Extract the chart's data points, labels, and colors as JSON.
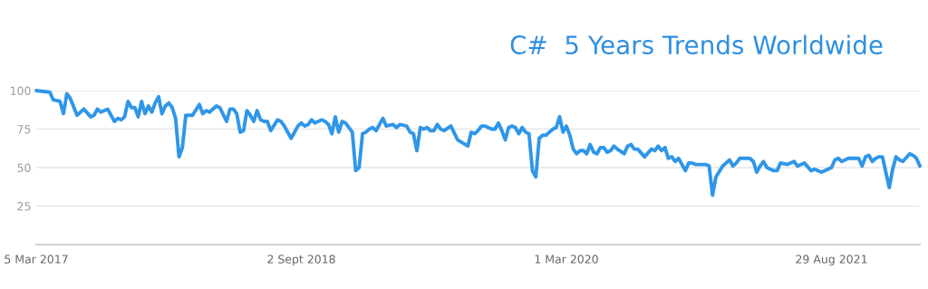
{
  "chart_data": {
    "type": "line",
    "title": "C#  5 Years Trends Worldwide",
    "x": [
      "2017-03-05",
      "2017-04-02",
      "2017-04-09",
      "2017-04-23",
      "2017-04-30",
      "2017-05-07",
      "2017-05-14",
      "2017-05-28",
      "2017-06-11",
      "2017-06-25",
      "2017-07-02",
      "2017-07-09",
      "2017-07-16",
      "2017-07-30",
      "2017-08-13",
      "2017-08-20",
      "2017-08-27",
      "2017-09-03",
      "2017-09-10",
      "2017-09-17",
      "2017-09-24",
      "2017-10-01",
      "2017-10-08",
      "2017-10-15",
      "2017-10-22",
      "2017-10-29",
      "2017-11-05",
      "2017-11-12",
      "2017-11-19",
      "2017-11-26",
      "2017-12-03",
      "2017-12-10",
      "2017-12-17",
      "2017-12-24",
      "2017-12-31",
      "2018-01-07",
      "2018-01-21",
      "2018-02-04",
      "2018-02-11",
      "2018-02-18",
      "2018-02-25",
      "2018-03-11",
      "2018-03-18",
      "2018-04-01",
      "2018-04-08",
      "2018-04-15",
      "2018-04-22",
      "2018-04-29",
      "2018-05-06",
      "2018-05-13",
      "2018-05-20",
      "2018-05-27",
      "2018-06-03",
      "2018-06-10",
      "2018-06-17",
      "2018-06-24",
      "2018-07-01",
      "2018-07-15",
      "2018-07-22",
      "2018-07-29",
      "2018-08-12",
      "2018-08-26",
      "2018-09-02",
      "2018-09-09",
      "2018-09-16",
      "2018-09-23",
      "2018-09-30",
      "2018-10-14",
      "2018-10-21",
      "2018-10-28",
      "2018-11-04",
      "2018-11-11",
      "2018-11-18",
      "2018-11-25",
      "2018-12-02",
      "2018-12-16",
      "2018-12-23",
      "2018-12-30",
      "2019-01-06",
      "2019-01-13",
      "2019-01-20",
      "2019-01-27",
      "2019-02-03",
      "2019-02-10",
      "2019-02-17",
      "2019-02-24",
      "2019-03-10",
      "2019-03-17",
      "2019-03-24",
      "2019-04-07",
      "2019-04-14",
      "2019-04-21",
      "2019-04-28",
      "2019-05-05",
      "2019-05-12",
      "2019-05-19",
      "2019-05-26",
      "2019-06-02",
      "2019-06-09",
      "2019-06-16",
      "2019-06-23",
      "2019-07-07",
      "2019-07-21",
      "2019-08-11",
      "2019-08-18",
      "2019-08-25",
      "2019-09-01",
      "2019-09-08",
      "2019-09-15",
      "2019-09-29",
      "2019-10-06",
      "2019-10-13",
      "2019-10-20",
      "2019-10-27",
      "2019-11-03",
      "2019-11-10",
      "2019-11-17",
      "2019-11-24",
      "2019-12-01",
      "2019-12-08",
      "2019-12-15",
      "2019-12-22",
      "2019-12-29",
      "2020-01-05",
      "2020-01-12",
      "2020-01-19",
      "2020-01-26",
      "2020-02-02",
      "2020-02-09",
      "2020-02-16",
      "2020-02-23",
      "2020-03-01",
      "2020-03-08",
      "2020-03-15",
      "2020-03-22",
      "2020-03-29",
      "2020-04-05",
      "2020-04-12",
      "2020-04-19",
      "2020-04-26",
      "2020-05-03",
      "2020-05-10",
      "2020-05-17",
      "2020-05-24",
      "2020-05-31",
      "2020-06-07",
      "2020-06-14",
      "2020-06-28",
      "2020-07-05",
      "2020-07-12",
      "2020-07-19",
      "2020-07-26",
      "2020-08-09",
      "2020-08-23",
      "2020-08-30",
      "2020-09-06",
      "2020-09-13",
      "2020-09-20",
      "2020-09-27",
      "2020-10-04",
      "2020-10-11",
      "2020-10-18",
      "2020-11-01",
      "2020-11-08",
      "2020-11-15",
      "2020-11-22",
      "2020-12-13",
      "2020-12-20",
      "2020-12-27",
      "2021-01-03",
      "2021-01-17",
      "2021-01-24",
      "2021-01-31",
      "2021-02-07",
      "2021-02-14",
      "2021-02-21",
      "2021-03-07",
      "2021-03-14",
      "2021-03-21",
      "2021-03-28",
      "2021-04-04",
      "2021-04-11",
      "2021-04-18",
      "2021-05-02",
      "2021-05-09",
      "2021-05-16",
      "2021-05-30",
      "2021-06-13",
      "2021-06-20",
      "2021-07-04",
      "2021-07-18",
      "2021-07-25",
      "2021-08-08",
      "2021-08-15",
      "2021-08-29",
      "2021-09-05",
      "2021-09-12",
      "2021-09-19",
      "2021-10-03",
      "2021-10-10",
      "2021-10-24",
      "2021-10-31",
      "2021-11-07",
      "2021-11-14",
      "2021-11-21",
      "2021-11-28",
      "2021-12-05",
      "2021-12-12",
      "2021-12-26",
      "2022-01-02",
      "2022-01-09",
      "2022-01-16",
      "2022-01-23",
      "2022-02-06",
      "2022-02-13",
      "2022-02-20",
      "2022-02-27"
    ],
    "series": [
      {
        "color": "#2f96e8",
        "values": [
          100,
          99,
          94,
          93,
          85,
          98,
          95,
          84,
          88,
          83,
          84,
          88,
          86,
          88,
          80,
          82,
          81,
          83,
          93,
          89,
          89,
          83,
          93,
          85,
          90,
          86,
          92,
          96,
          85,
          90,
          92,
          89,
          82,
          57,
          63,
          84,
          84,
          91,
          85,
          87,
          86,
          90,
          89,
          80,
          88,
          88,
          85,
          73,
          74,
          87,
          84,
          80,
          87,
          81,
          80,
          80,
          74,
          81,
          80,
          77,
          69,
          77,
          79,
          77,
          78,
          81,
          79,
          81,
          80,
          78,
          72,
          83,
          73,
          80,
          79,
          73,
          48,
          50,
          72,
          73,
          75,
          76,
          74,
          78,
          82,
          77,
          78,
          76,
          78,
          77,
          73,
          72,
          61,
          76,
          75,
          76,
          74,
          74,
          78,
          75,
          74,
          77,
          68,
          64,
          73,
          72,
          74,
          77,
          77,
          75,
          75,
          79,
          74,
          68,
          76,
          77,
          76,
          72,
          76,
          73,
          72,
          48,
          44,
          69,
          71,
          71,
          73,
          75,
          76,
          83,
          73,
          77,
          71,
          62,
          59,
          61,
          61,
          59,
          65,
          60,
          59,
          63,
          63,
          60,
          61,
          64,
          62,
          59,
          64,
          65,
          62,
          62,
          57,
          62,
          61,
          64,
          61,
          63,
          56,
          57,
          54,
          56,
          48,
          53,
          53,
          52,
          52,
          51,
          32,
          44,
          51,
          53,
          55,
          51,
          53,
          56,
          56,
          56,
          54,
          47,
          51,
          54,
          50,
          48,
          48,
          53,
          52,
          54,
          51,
          53,
          48,
          49,
          47,
          48,
          50,
          55,
          56,
          54,
          56,
          56,
          56,
          51,
          57,
          58,
          54,
          56,
          57,
          57,
          37,
          49,
          57,
          55,
          54,
          59,
          58,
          56,
          51
        ]
      }
    ],
    "xlim": [
      "2017-03-05",
      "2022-02-27"
    ],
    "xticks": [
      {
        "value": "2017-03-05",
        "label": "5 Mar 2017"
      },
      {
        "value": "2018-09-02",
        "label": "2 Sept 2018"
      },
      {
        "value": "2020-03-01",
        "label": "1 Mar 2020"
      },
      {
        "value": "2021-08-29",
        "label": "29 Aug 2021"
      }
    ],
    "ylim": [
      0,
      100
    ],
    "yticks": [
      25,
      50,
      75,
      100
    ],
    "grid": "y"
  }
}
